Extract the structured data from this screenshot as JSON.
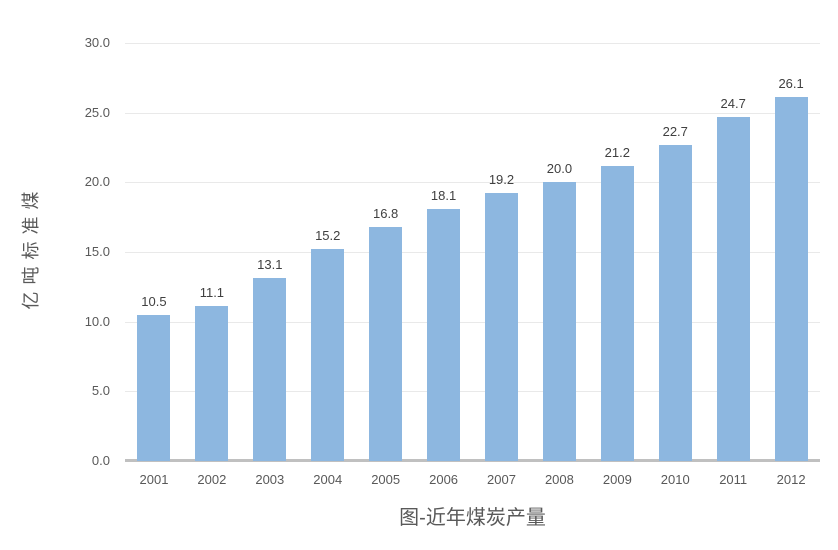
{
  "chart_data": {
    "type": "bar",
    "title": "图-近年煤炭产量",
    "ylabel": "亿吨标准煤",
    "xlabel": "",
    "categories": [
      "2001",
      "2002",
      "2003",
      "2004",
      "2005",
      "2006",
      "2007",
      "2008",
      "2009",
      "2010",
      "2011",
      "2012"
    ],
    "values": [
      10.5,
      11.1,
      13.1,
      15.2,
      16.8,
      18.1,
      19.2,
      20.0,
      21.2,
      22.7,
      24.7,
      26.1
    ],
    "data_labels": [
      "10.5",
      "11.1",
      "13.1",
      "15.2",
      "16.8",
      "18.1",
      "19.2",
      "20.0",
      "21.2",
      "22.7",
      "24.7",
      "26.1"
    ],
    "ylim": [
      0,
      30
    ],
    "y_tick_values": [
      30,
      25,
      20,
      15,
      10,
      5,
      0
    ],
    "y_tick_labels": [
      "30.0",
      "25.0",
      "20.0",
      "15.0",
      "10.0",
      "5.0",
      "0.0"
    ],
    "grid": true,
    "legend": "none",
    "colors": {
      "bar_fill": "#8db7e0",
      "gridline": "#e9e9e9",
      "axis_line": "#c0c0c0",
      "tick_text": "#595959",
      "data_label_text": "#404040",
      "title_text": "#595959"
    }
  }
}
